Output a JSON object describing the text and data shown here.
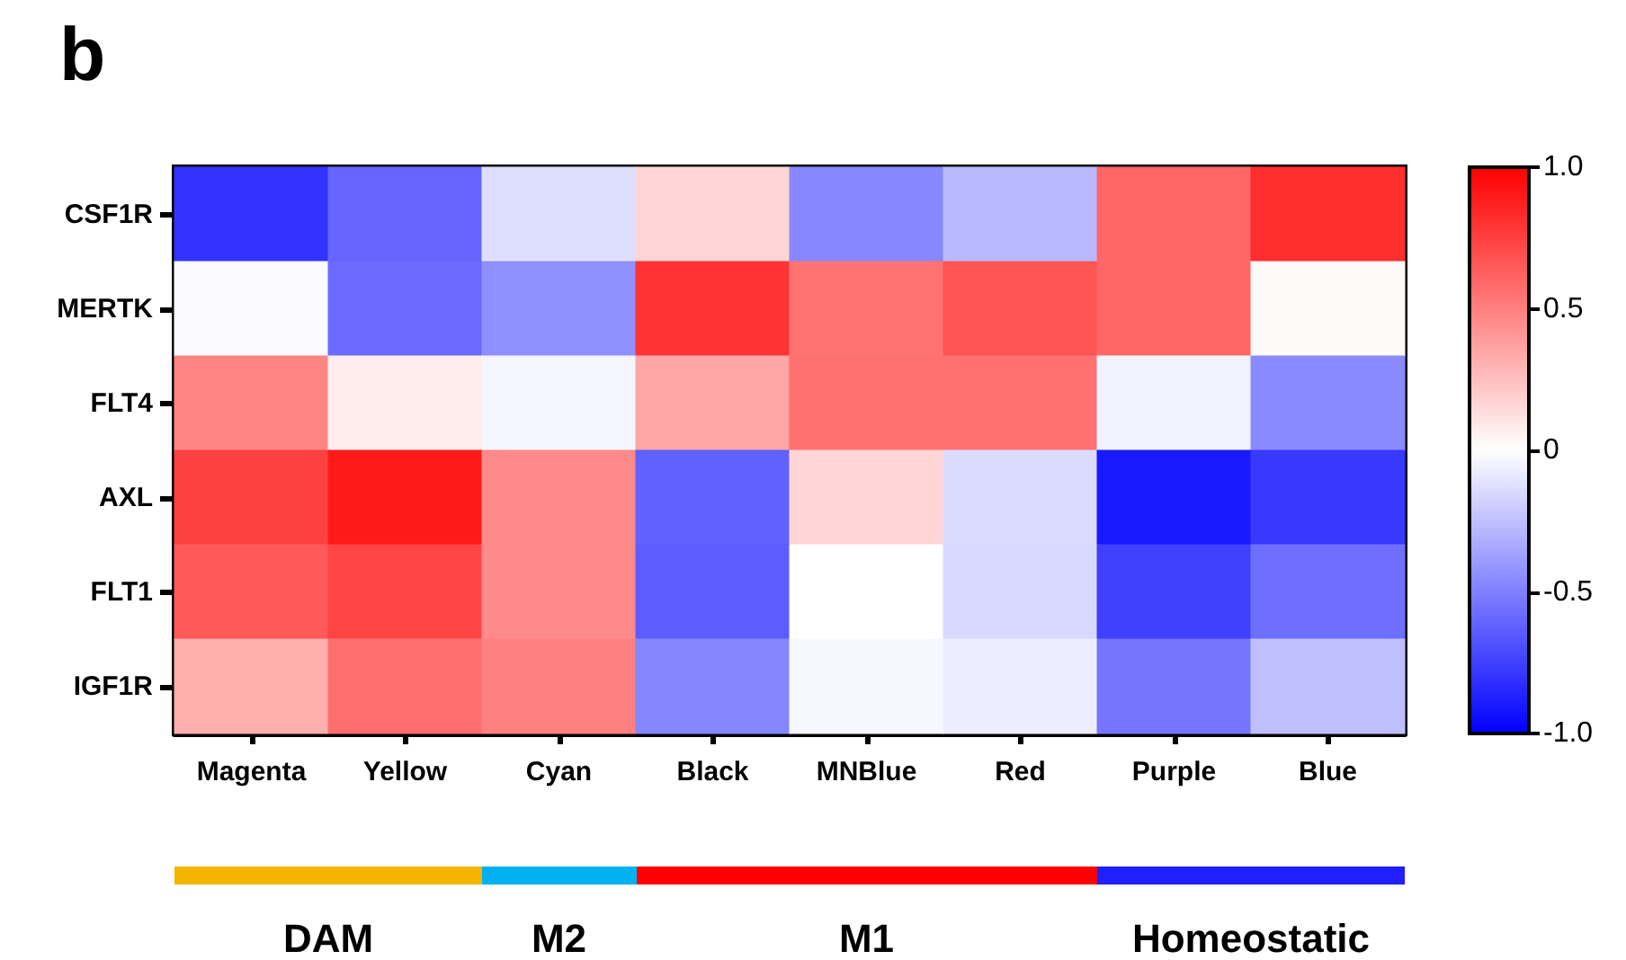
{
  "chart_data": {
    "type": "heatmap",
    "title": "b",
    "categories": [
      "Magenta",
      "Yellow",
      "Cyan",
      "Black",
      "MNBlue",
      "Red",
      "Purple",
      "Blue"
    ],
    "y_categories": [
      "CSF1R",
      "MERTK",
      "FLT4",
      "AXL",
      "FLT1",
      "IGF1R"
    ],
    "cells": [
      [
        -0.8,
        -0.6,
        -0.13,
        0.17,
        -0.47,
        -0.28,
        0.6,
        0.82
      ],
      [
        -0.02,
        -0.58,
        -0.44,
        0.8,
        0.55,
        0.67,
        0.6,
        0.02
      ],
      [
        0.48,
        0.07,
        -0.04,
        0.35,
        0.56,
        0.56,
        -0.05,
        -0.46
      ],
      [
        0.75,
        0.9,
        0.46,
        -0.62,
        0.17,
        -0.14,
        -0.9,
        -0.78
      ],
      [
        0.65,
        0.73,
        0.46,
        -0.64,
        0.0,
        -0.15,
        -0.75,
        -0.57
      ],
      [
        0.32,
        0.57,
        0.5,
        -0.48,
        -0.03,
        -0.07,
        -0.54,
        -0.25
      ]
    ],
    "clim": [
      -1,
      1
    ],
    "cticks": [
      {
        "value": -1,
        "label": "-1.0"
      },
      {
        "value": -0.5,
        "label": "-0.5"
      },
      {
        "value": 0,
        "label": "0"
      },
      {
        "value": 0.5,
        "label": "0.5"
      },
      {
        "value": 1,
        "label": "1.0"
      }
    ],
    "annotations": [
      "DAM",
      "M2",
      "M1",
      "Homeostatic"
    ]
  }
}
